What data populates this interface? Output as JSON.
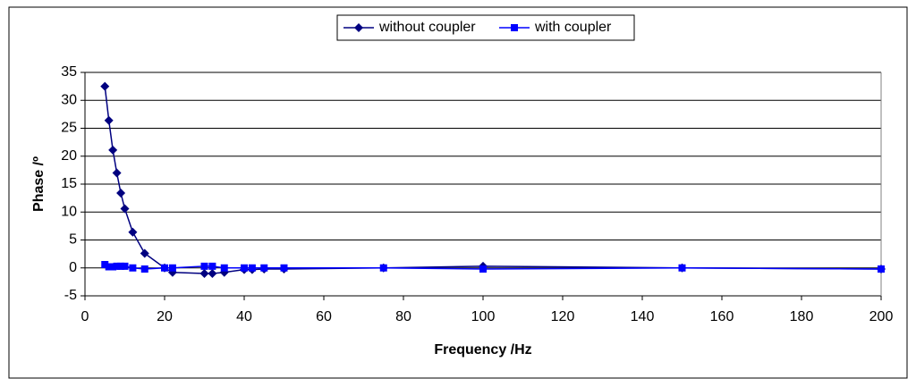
{
  "chart_data": {
    "type": "line",
    "x_label": "Frequency /Hz",
    "y_label": "Phase /º",
    "xlim": [
      0,
      200
    ],
    "xticks": [
      0,
      20,
      40,
      60,
      80,
      100,
      120,
      140,
      160,
      180,
      200
    ],
    "ylim": [
      -5,
      35
    ],
    "yticks": [
      -5,
      0,
      5,
      10,
      15,
      20,
      25,
      30,
      35
    ],
    "grid": true,
    "legend": "top",
    "series": [
      {
        "name": "without coupler",
        "color": "#000080",
        "marker": "diamond",
        "x": [
          5,
          6,
          7,
          8,
          9,
          10,
          12,
          15,
          20,
          22,
          30,
          32,
          35,
          40,
          42,
          45,
          50,
          75,
          100,
          150,
          200
        ],
        "values": [
          32.5,
          26.4,
          21.1,
          17,
          13.4,
          10.6,
          6.4,
          2.6,
          0,
          -0.8,
          -1,
          -1,
          -0.8,
          -0.3,
          -0.3,
          -0.2,
          -0.2,
          0,
          0.3,
          0,
          -0.2
        ]
      },
      {
        "name": "with coupler",
        "color": "#0000ff",
        "marker": "square",
        "x": [
          5,
          6,
          7,
          8,
          9,
          10,
          12,
          15,
          20,
          22,
          30,
          32,
          35,
          40,
          42,
          45,
          50,
          75,
          100,
          150,
          200
        ],
        "values": [
          0.6,
          0.2,
          0.2,
          0.3,
          0.3,
          0.3,
          0,
          -0.2,
          0,
          0,
          0.3,
          0.3,
          0,
          0,
          0,
          0,
          0,
          0,
          -0.2,
          0,
          -0.2
        ]
      }
    ]
  }
}
